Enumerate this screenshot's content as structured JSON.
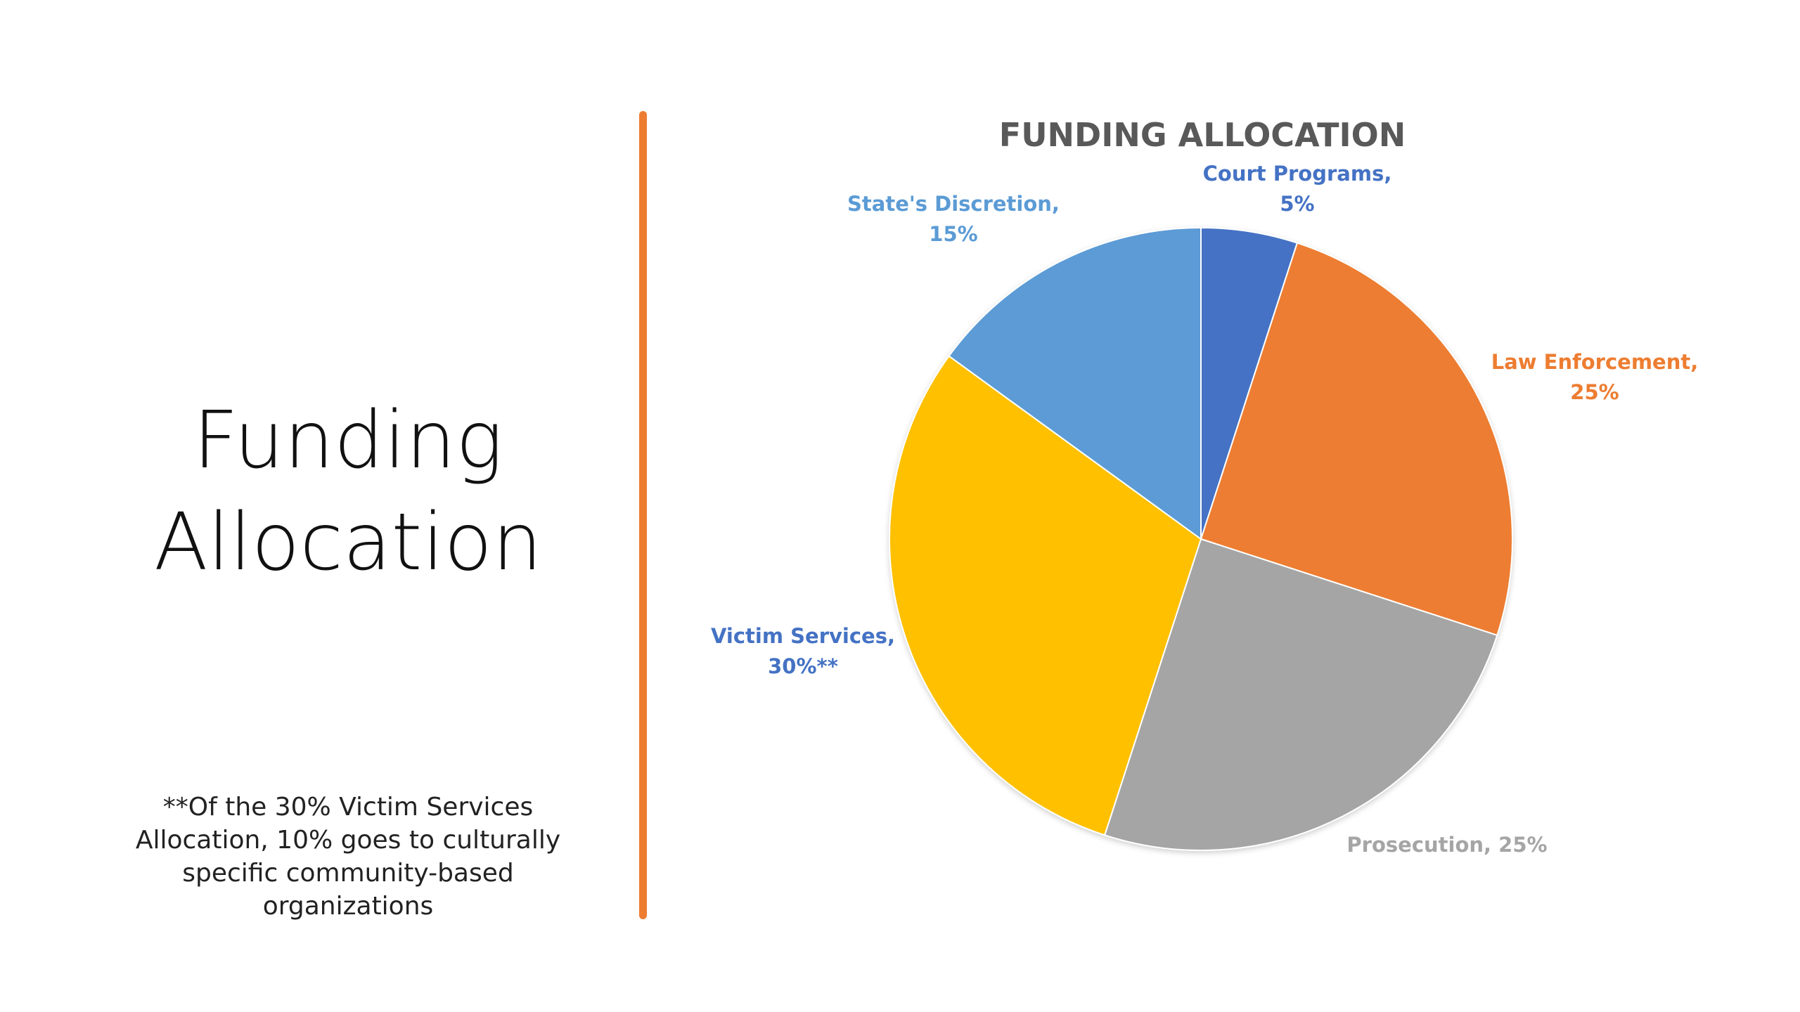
{
  "slide": {
    "title_line1": "Funding",
    "title_line2": "Allocation",
    "footnote_line1": "**Of the 30% Victim Services",
    "footnote_line2": "Allocation, 10% goes to culturally",
    "footnote_line3": "specific community-based",
    "footnote_line4": "organizations"
  },
  "colors": {
    "divider": "#ED7D31"
  },
  "chart_data": {
    "type": "pie",
    "title": "FUNDING ALLOCATION",
    "legend": "none",
    "slices": [
      {
        "category": "Court Programs",
        "value": 5,
        "color": "#4472C4",
        "label_lines": [
          "Court Programs,",
          "5%"
        ],
        "label_color": "#4472C4"
      },
      {
        "category": "Law Enforcement",
        "value": 25,
        "color": "#ED7D31",
        "label_lines": [
          "Law Enforcement,",
          "25%"
        ],
        "label_color": "#ED7D31"
      },
      {
        "category": "Prosecution",
        "value": 25,
        "color": "#A5A5A5",
        "label_lines": [
          "Prosecution, 25%"
        ],
        "label_color": "#A5A5A5"
      },
      {
        "category": "Victim Services",
        "value": 30,
        "color": "#FFC000",
        "label_lines": [
          "Victim Services,",
          "30%**"
        ],
        "label_color": "#4472C4"
      },
      {
        "category": "State's Discretion",
        "value": 15,
        "color": "#5B9BD5",
        "label_lines": [
          "State's Discretion,",
          "15%"
        ],
        "label_color": "#5B9BD5"
      }
    ]
  }
}
